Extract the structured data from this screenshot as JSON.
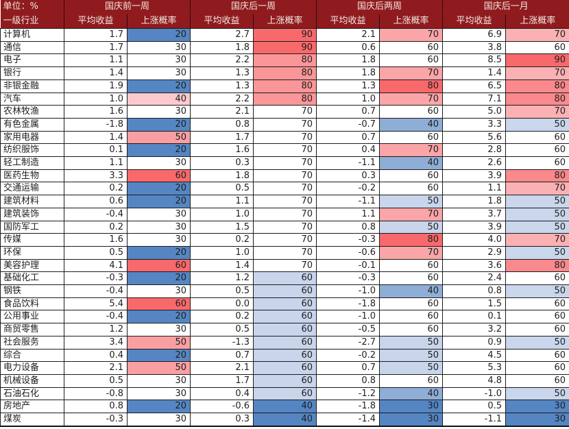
{
  "colors": {
    "header_bg": "#901B1E",
    "header_text": "#F2E8E2",
    "grid": "#1b1b1b",
    "text": "#1e1e1e",
    "scale_red": "#F8696B",
    "scale_blue": "#5586C3",
    "scale_white": "#FFFFFF"
  },
  "color_scales": {
    "pre1w": {
      "20": "#5586C3",
      "30": "#FFFFFF",
      "40": "#FCCACC",
      "50": "#F99FA2",
      "60": "#F8696B"
    },
    "post1w": {
      "40": "#5586C3",
      "60": "#C8D5EB",
      "70": "#FFFFFF",
      "80": "#FA9598",
      "90": "#F8696B"
    },
    "post2w": {
      "30": "#5586C3",
      "40": "#8EAED7",
      "50": "#C8D5EB",
      "60": "#FFFFFF",
      "70": "#FAA5A8",
      "80": "#F8696B"
    },
    "post1m": {
      "30": "#5586C3",
      "50": "#C9D6EC",
      "60": "#FFFFFF",
      "70": "#FBB1B3",
      "80": "#F9898C",
      "90": "#F8696B"
    }
  },
  "chart_data": {
    "type": "table",
    "subtype": "heatmap-conditional-formatting",
    "unit_label": "单位：%",
    "row_header_label": "一级行业",
    "sub_columns": [
      "平均收益",
      "上涨概率"
    ],
    "column_groups": [
      {
        "key": "pre1w",
        "label": "国庆前一周"
      },
      {
        "key": "post1w",
        "label": "国庆后一周"
      },
      {
        "key": "post2w",
        "label": "国庆后两周"
      },
      {
        "key": "post1m",
        "label": "国庆后一月"
      }
    ],
    "rows": [
      {
        "industry": "计算机",
        "cells": [
          "1.7",
          20,
          "2.7",
          90,
          "2.1",
          70,
          "6.9",
          70
        ]
      },
      {
        "industry": "通信",
        "cells": [
          "1.7",
          30,
          "1.8",
          90,
          "0.6",
          60,
          "3.8",
          60
        ]
      },
      {
        "industry": "电子",
        "cells": [
          "1.1",
          30,
          "2.2",
          80,
          "1.8",
          60,
          "8.5",
          90
        ]
      },
      {
        "industry": "银行",
        "cells": [
          "1.4",
          30,
          "1.3",
          80,
          "1.8",
          70,
          "1.4",
          70
        ]
      },
      {
        "industry": "非银金融",
        "cells": [
          "1.9",
          20,
          "1.3",
          80,
          "1.3",
          80,
          "6.5",
          80
        ]
      },
      {
        "industry": "汽车",
        "cells": [
          "1.0",
          40,
          "2.2",
          80,
          "1.0",
          70,
          "7.1",
          80
        ]
      },
      {
        "industry": "农林牧渔",
        "cells": [
          "1.6",
          30,
          "2.1",
          70,
          "0.7",
          60,
          "5.0",
          70
        ]
      },
      {
        "industry": "有色金属",
        "cells": [
          "-1.8",
          20,
          "0.8",
          70,
          "-0.7",
          40,
          "3.3",
          50
        ]
      },
      {
        "industry": "家用电器",
        "cells": [
          "1.4",
          50,
          "1.7",
          70,
          "0.7",
          60,
          "5.6",
          60
        ]
      },
      {
        "industry": "纺织服饰",
        "cells": [
          "0.1",
          20,
          "1.6",
          70,
          "0.4",
          70,
          "2.8",
          60
        ]
      },
      {
        "industry": "轻工制造",
        "cells": [
          "1.1",
          30,
          "0.3",
          70,
          "-1.1",
          40,
          "2.6",
          60
        ]
      },
      {
        "industry": "医药生物",
        "cells": [
          "3.3",
          60,
          "1.8",
          70,
          "0.3",
          60,
          "3.9",
          80
        ]
      },
      {
        "industry": "交通运输",
        "cells": [
          "0.2",
          20,
          "0.5",
          70,
          "-0.2",
          60,
          "1.1",
          70
        ]
      },
      {
        "industry": "建筑材料",
        "cells": [
          "0.6",
          20,
          "1.1",
          70,
          "-1.1",
          50,
          "1.8",
          50
        ]
      },
      {
        "industry": "建筑装饰",
        "cells": [
          "-0.4",
          30,
          "1.0",
          70,
          "1.1",
          70,
          "3.7",
          50
        ]
      },
      {
        "industry": "国防军工",
        "cells": [
          "0.2",
          30,
          "1.5",
          70,
          "0.8",
          50,
          "3.9",
          50
        ]
      },
      {
        "industry": "传媒",
        "cells": [
          "1.6",
          30,
          "0.2",
          70,
          "-0.3",
          80,
          "4.0",
          70
        ]
      },
      {
        "industry": "环保",
        "cells": [
          "0.5",
          20,
          "1.0",
          70,
          "-0.6",
          70,
          "2.9",
          50
        ]
      },
      {
        "industry": "美容护理",
        "cells": [
          "4.1",
          60,
          "1.4",
          70,
          "-0.1",
          60,
          "3.6",
          80
        ]
      },
      {
        "industry": "基础化工",
        "cells": [
          "-0.3",
          20,
          "1.2",
          60,
          "-0.3",
          60,
          "2.4",
          60
        ]
      },
      {
        "industry": "钢铁",
        "cells": [
          "-0.4",
          30,
          "0.5",
          60,
          "-1.0",
          40,
          "0.8",
          50
        ]
      },
      {
        "industry": "食品饮料",
        "cells": [
          "5.4",
          60,
          "0.0",
          60,
          "-1.8",
          60,
          "1.5",
          60
        ]
      },
      {
        "industry": "公用事业",
        "cells": [
          "-0.4",
          20,
          "0.2",
          60,
          "-1.0",
          60,
          "0.1",
          60
        ]
      },
      {
        "industry": "商贸零售",
        "cells": [
          "1.2",
          30,
          "0.5",
          60,
          "-0.5",
          60,
          "3.2",
          60
        ]
      },
      {
        "industry": "社会服务",
        "cells": [
          "3.4",
          50,
          "-1.3",
          60,
          "-2.7",
          50,
          "0.9",
          50
        ]
      },
      {
        "industry": "综合",
        "cells": [
          "0.4",
          20,
          "0.7",
          60,
          "-0.2",
          50,
          "4.5",
          60
        ]
      },
      {
        "industry": "电力设备",
        "cells": [
          "2.1",
          50,
          "2.1",
          60,
          "0.7",
          50,
          "5.3",
          60
        ]
      },
      {
        "industry": "机械设备",
        "cells": [
          "0.5",
          30,
          "1.7",
          60,
          "0.8",
          60,
          "4.8",
          60
        ]
      },
      {
        "industry": "石油石化",
        "cells": [
          "-0.8",
          30,
          "0.4",
          60,
          "-1.2",
          40,
          "-1.0",
          50
        ]
      },
      {
        "industry": "房地产",
        "cells": [
          "0.8",
          20,
          "-0.6",
          40,
          "-1.8",
          30,
          "0.5",
          30
        ]
      },
      {
        "industry": "煤炭",
        "cells": [
          "-0.3",
          30,
          "0.3",
          40,
          "-1.4",
          30,
          "-1.1",
          30
        ]
      }
    ]
  }
}
